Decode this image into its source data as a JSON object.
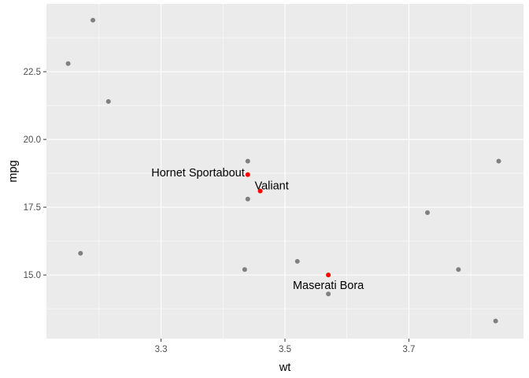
{
  "chart_data": {
    "type": "scatter",
    "title": "",
    "xlabel": "wt",
    "ylabel": "mpg",
    "xlim": [
      3.115,
      3.885
    ],
    "ylim": [
      12.65,
      25.0
    ],
    "x_ticks": [
      3.3,
      3.5,
      3.7
    ],
    "x_tick_labels": [
      "3.3",
      "3.5",
      "3.7"
    ],
    "y_ticks": [
      15.0,
      17.5,
      20.0,
      22.5
    ],
    "y_tick_labels": [
      "15.0",
      "17.5",
      "20.0",
      "22.5"
    ],
    "grid": true,
    "background": "#ebebeb",
    "gridline_color": "#ffffff",
    "series": [
      {
        "color": "#808080",
        "points": [
          {
            "x": 3.15,
            "y": 22.8
          },
          {
            "x": 3.19,
            "y": 24.4
          },
          {
            "x": 3.17,
            "y": 15.8
          },
          {
            "x": 3.215,
            "y": 21.4
          },
          {
            "x": 3.435,
            "y": 15.2
          },
          {
            "x": 3.44,
            "y": 17.8
          },
          {
            "x": 3.44,
            "y": 19.2
          },
          {
            "x": 3.52,
            "y": 15.5
          },
          {
            "x": 3.57,
            "y": 14.3
          },
          {
            "x": 3.73,
            "y": 17.3
          },
          {
            "x": 3.78,
            "y": 15.2
          },
          {
            "x": 3.84,
            "y": 13.3
          },
          {
            "x": 3.845,
            "y": 19.2
          }
        ]
      },
      {
        "color": "#ff0000",
        "points": [
          {
            "x": 3.44,
            "y": 18.7,
            "label": "Hornet Sportabout",
            "anchor": "end"
          },
          {
            "x": 3.46,
            "y": 18.1,
            "label": "Valiant",
            "anchor": "start"
          },
          {
            "x": 3.57,
            "y": 15.0,
            "label": "Maserati Bora",
            "anchor": "middle"
          }
        ]
      }
    ]
  }
}
